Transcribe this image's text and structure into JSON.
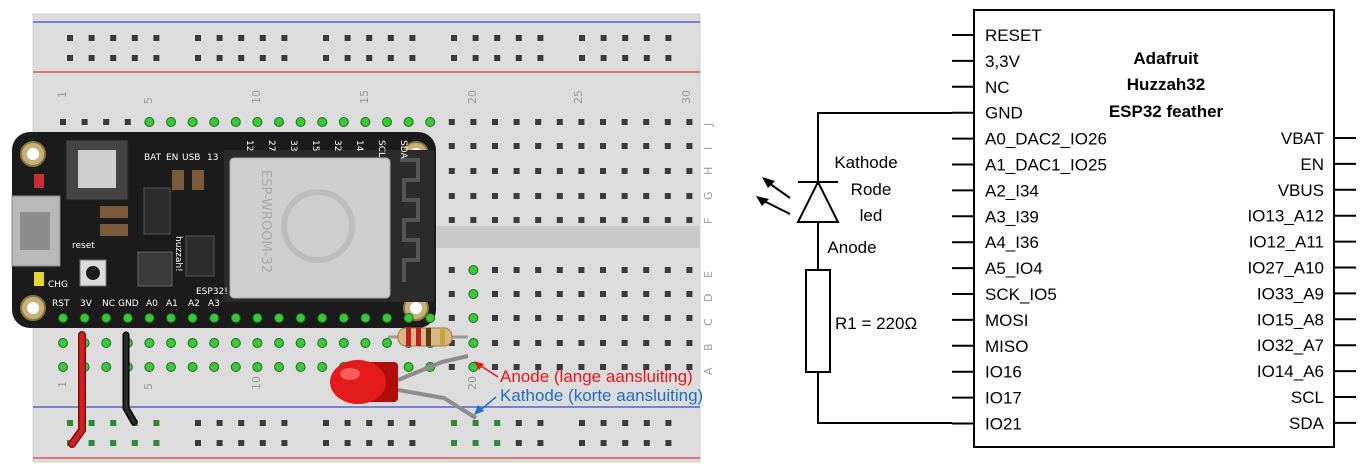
{
  "breadboard": {
    "col_numbers": [
      "1",
      "5",
      "10",
      "15",
      "20",
      "25",
      "30"
    ],
    "row_letters_top": [
      "J",
      "I",
      "H",
      "G",
      "F"
    ],
    "row_letters_bottom": [
      "E",
      "D",
      "C",
      "B",
      "A"
    ]
  },
  "feather_board": {
    "chip_label": "ESP-WROOM-32",
    "top_labels": [
      "BAT",
      "EN",
      "USB",
      "13",
      "12",
      "27",
      "33",
      "15",
      "32",
      "14",
      "SCL",
      "SDA"
    ],
    "bottom_labels": [
      "RST",
      "3V",
      "NC",
      "GND",
      "A0",
      "A1",
      "A2",
      "A3"
    ],
    "misc_labels": [
      "reset",
      "CHG",
      "ESP32!",
      "huzzah!"
    ]
  },
  "annotations": {
    "anode": "Anode (lange aansluiting)",
    "kathode": "Kathode (korte aansluiting)",
    "anode_color": "#e8161b",
    "kathode_color": "#1e6fc4"
  },
  "schematic": {
    "title_lines": [
      "Adafruit",
      "Huzzah32",
      "ESP32 feather"
    ],
    "left_pins": [
      "RESET",
      "3,3V",
      "NC",
      "GND",
      "A0_DAC2_IO26",
      "A1_DAC1_IO25",
      "A2_I34",
      "A3_I39",
      "A4_I36",
      "A5_IO4",
      "SCK_IO5",
      "MOSI",
      "MISO",
      "IO16",
      "IO17",
      "IO21"
    ],
    "right_pins": [
      "VBAT",
      "EN",
      "VBUS",
      "IO13_A12",
      "IO12_A11",
      "IO27_A10",
      "IO33_A9",
      "IO15_A8",
      "IO32_A7",
      "IO14_A6",
      "SCL",
      "SDA"
    ],
    "led_labels": [
      "Kathode",
      "Rode",
      "led",
      "Anode"
    ],
    "resistor_label": "R1 = 220Ω"
  }
}
